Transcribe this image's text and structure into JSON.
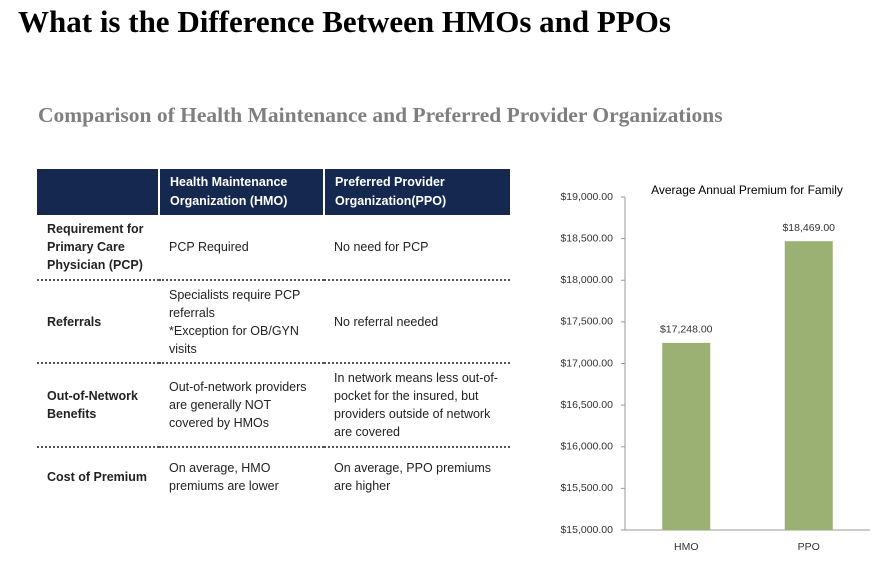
{
  "title": "What is the Difference Between HMOs and PPOs",
  "subtitle": "Comparison of Health Maintenance and Preferred Provider Organizations",
  "table": {
    "header": [
      "Health Maintenance Organization (HMO)",
      "Preferred Provider Organization(PPO)"
    ],
    "rows": [
      [
        "Requirement for Primary Care Physician (PCP)",
        "PCP Required",
        "No need for PCP"
      ],
      [
        "Referrals",
        "Specialists require PCP referrals\n*Exception for OB/GYN visits",
        "No referral needed"
      ],
      [
        "Out-of-Network Benefits",
        "Out-of-network providers are generally NOT covered by HMOs",
        "In network means less out-of-pocket for the insured, but providers outside of network are covered"
      ],
      [
        "Cost of Premium",
        "On average, HMO premiums are lower",
        "On average, PPO premiums are higher"
      ]
    ]
  },
  "chart_data": {
    "type": "bar",
    "title": "Average Annual Premium for Family",
    "categories": [
      "HMO",
      "PPO"
    ],
    "values": [
      17248,
      18469
    ],
    "value_labels": [
      "$17,248.00",
      "$18,469.00"
    ],
    "color": "#9bb174",
    "ylim": [
      15000,
      19000
    ],
    "yticks": [
      {
        "value": 15000,
        "label": "$15,000.00"
      },
      {
        "value": 15500,
        "label": "$15,500.00"
      },
      {
        "value": 16000,
        "label": "$16,000.00"
      },
      {
        "value": 16500,
        "label": "$16,500.00"
      },
      {
        "value": 17000,
        "label": "$17,000.00"
      },
      {
        "value": 17500,
        "label": "$17,500.00"
      },
      {
        "value": 18000,
        "label": "$18,000.00"
      },
      {
        "value": 18500,
        "label": "$18,500.00"
      },
      {
        "value": 19000,
        "label": "$19,000.00"
      }
    ]
  }
}
